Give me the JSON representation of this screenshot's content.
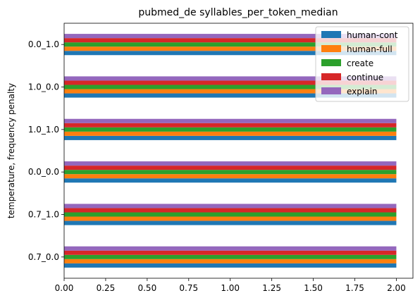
{
  "chart_data": {
    "type": "bar",
    "orientation": "horizontal",
    "title": "pubmed_de syllables_per_token_median",
    "xlabel": "",
    "ylabel": "temperature, frequency penalty",
    "categories": [
      "0.7_0.0",
      "0.7_1.0",
      "0.0_0.0",
      "1.0_1.0",
      "1.0_0.0",
      "0.0_1.0"
    ],
    "series": [
      {
        "name": "human-cont",
        "color": "#1f77b4",
        "values": [
          2.0,
          2.0,
          2.0,
          2.0,
          2.0,
          2.0
        ]
      },
      {
        "name": "human-full",
        "color": "#ff7f0e",
        "values": [
          2.0,
          2.0,
          2.0,
          2.0,
          2.0,
          2.0
        ]
      },
      {
        "name": "create",
        "color": "#2ca02c",
        "values": [
          2.0,
          2.0,
          2.0,
          2.0,
          2.0,
          2.0
        ]
      },
      {
        "name": "continue",
        "color": "#d62728",
        "values": [
          2.0,
          2.0,
          2.0,
          2.0,
          2.0,
          2.0
        ]
      },
      {
        "name": "explain",
        "color": "#9467bd",
        "values": [
          2.0,
          2.0,
          2.0,
          2.0,
          2.0,
          2.0
        ]
      }
    ],
    "xlim": [
      0,
      2.1
    ],
    "xticks": [
      "0.00",
      "0.25",
      "0.50",
      "0.75",
      "1.00",
      "1.25",
      "1.50",
      "1.75",
      "2.00"
    ],
    "grid": false,
    "legend_position": "top-right"
  }
}
